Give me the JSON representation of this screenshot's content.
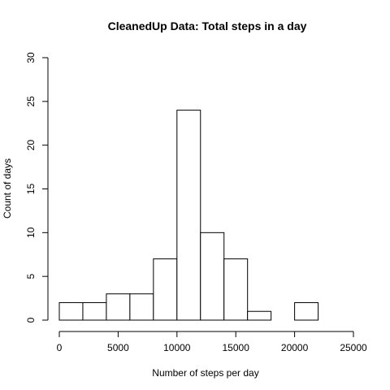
{
  "chart_data": {
    "type": "bar",
    "title": "CleanedUp Data: Total steps in  a day",
    "xlabel": "Number of steps per day",
    "ylabel": "Count of days",
    "xlim": [
      0,
      25000
    ],
    "ylim": [
      0,
      30
    ],
    "x_ticks": [
      0,
      5000,
      10000,
      15000,
      20000,
      25000
    ],
    "y_ticks": [
      0,
      5,
      10,
      15,
      20,
      25,
      30
    ],
    "bin_width": 2000,
    "bins": [
      {
        "start": 0,
        "end": 2000,
        "count": 2
      },
      {
        "start": 2000,
        "end": 4000,
        "count": 2
      },
      {
        "start": 4000,
        "end": 6000,
        "count": 3
      },
      {
        "start": 6000,
        "end": 8000,
        "count": 3
      },
      {
        "start": 8000,
        "end": 10000,
        "count": 7
      },
      {
        "start": 10000,
        "end": 12000,
        "count": 24
      },
      {
        "start": 12000,
        "end": 14000,
        "count": 10
      },
      {
        "start": 14000,
        "end": 16000,
        "count": 7
      },
      {
        "start": 16000,
        "end": 18000,
        "count": 1
      },
      {
        "start": 18000,
        "end": 20000,
        "count": 0
      },
      {
        "start": 20000,
        "end": 22000,
        "count": 2
      }
    ],
    "grid": false,
    "colors": {
      "bar_fill": "#ffffff",
      "bar_stroke": "#000000"
    }
  }
}
